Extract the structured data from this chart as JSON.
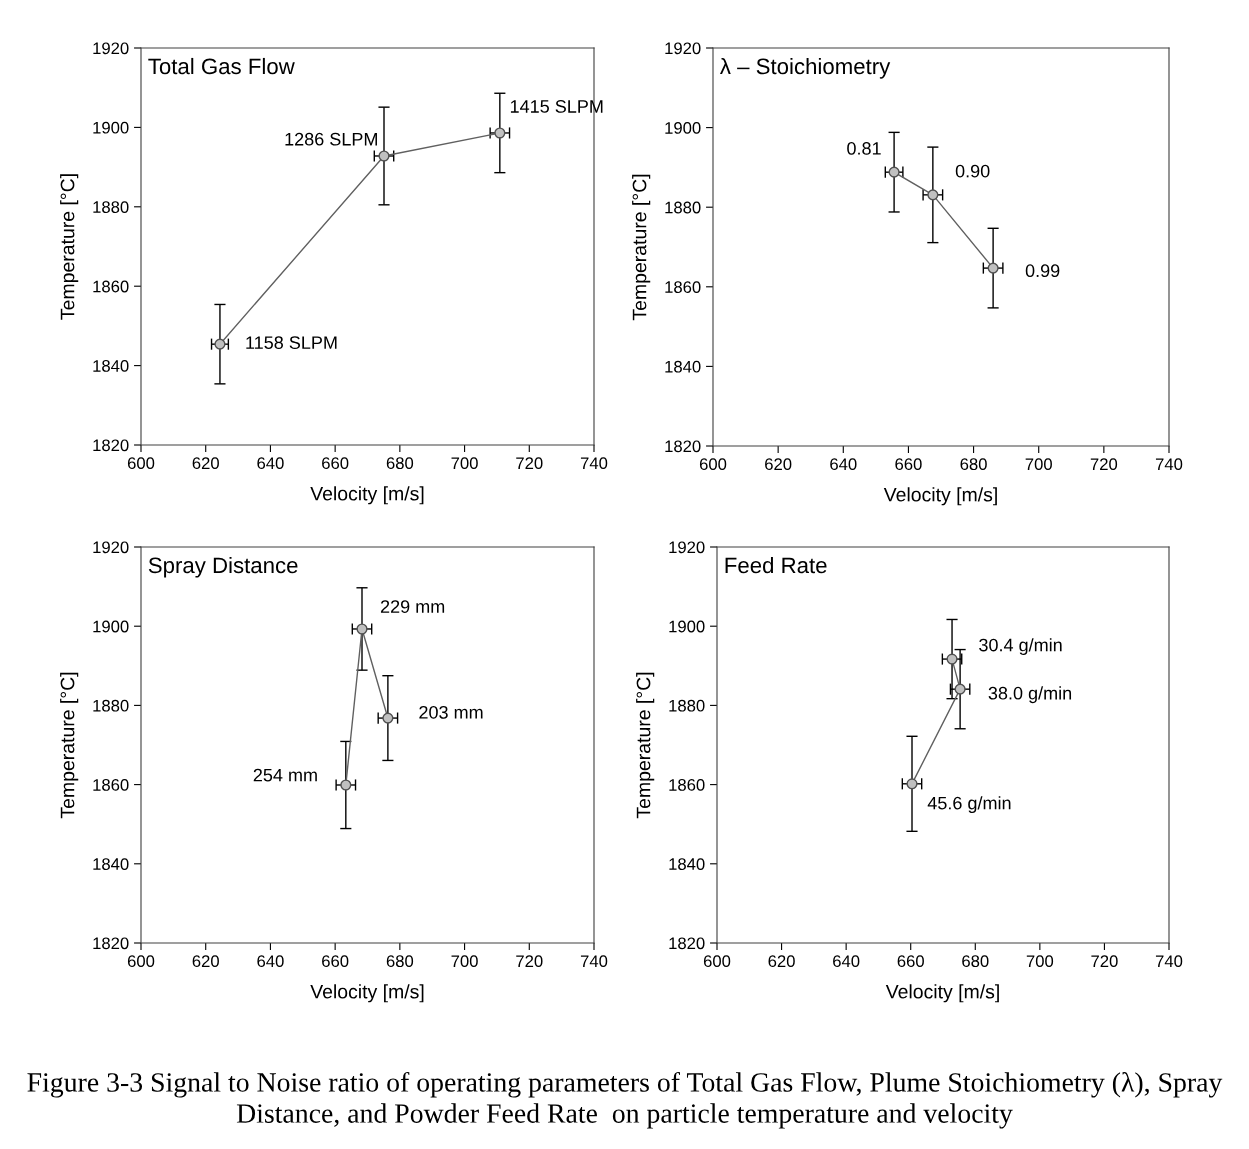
{
  "chart_data": [
    {
      "type": "line",
      "title": "Total Gas Flow",
      "xlabel": "Velocity [m/s]",
      "ylabel": "Temperature [°C]",
      "marker": "circle",
      "line_style": "solid",
      "xlim": [
        600,
        740
      ],
      "ylim": [
        1820,
        1920
      ],
      "xticks": [
        600,
        620,
        640,
        660,
        680,
        700,
        720,
        740
      ],
      "yticks": [
        1820,
        1840,
        1860,
        1880,
        1900,
        1920
      ],
      "series": [
        {
          "color": "#606060",
          "x": [
            624.4,
            675.1,
            710.9
          ],
          "values": [
            1845.4,
            1892.8,
            1898.6
          ],
          "errors": [
            10,
            12.3,
            10
          ],
          "xerrors": [
            2.6,
            3,
            3
          ]
        }
      ],
      "annotations": [
        {
          "text": "1158 SLPM",
          "x": 624.4,
          "y": 1845.4
        },
        {
          "text": "1286 SLPM",
          "x": 675.1,
          "y": 1892.8
        },
        {
          "text": "1415 SLPM",
          "x": 710.9,
          "y": 1898.6
        }
      ]
    },
    {
      "type": "line",
      "title": "λ – Stoichiometry",
      "xlabel": "Velocity [m/s]",
      "ylabel": "Temperature [°C]",
      "marker": "circle",
      "line_style": "solid",
      "xlim": [
        600,
        740
      ],
      "ylim": [
        1820,
        1920
      ],
      "xticks": [
        600,
        620,
        640,
        660,
        680,
        700,
        720,
        740
      ],
      "yticks": [
        1820,
        1840,
        1860,
        1880,
        1900,
        1920
      ],
      "series": [
        {
          "color": "#606060",
          "x": [
            655.6,
            667.5,
            686
          ],
          "values": [
            1888.8,
            1883.1,
            1864.7
          ],
          "errors": [
            10,
            12,
            10
          ],
          "xerrors": [
            2.7,
            3,
            3
          ]
        }
      ],
      "annotations": [
        {
          "text": "0.81",
          "x": 655.6,
          "y": 1888.8
        },
        {
          "text": "0.90",
          "x": 667.5,
          "y": 1883.1
        },
        {
          "text": "0.99",
          "x": 686,
          "y": 1864.7
        }
      ]
    },
    {
      "type": "line",
      "title": "Spray Distance",
      "xlabel": "Velocity [m/s]",
      "ylabel": "Temperature [°C]",
      "marker": "circle",
      "line_style": "solid",
      "xlim": [
        600,
        740
      ],
      "ylim": [
        1820,
        1920
      ],
      "xticks": [
        600,
        620,
        640,
        660,
        680,
        700,
        720,
        740
      ],
      "yticks": [
        1820,
        1840,
        1860,
        1880,
        1900,
        1920
      ],
      "series": [
        {
          "color": "#606060",
          "x": [
            663.3,
            668.3,
            676.3
          ],
          "values": [
            1859.9,
            1899.3,
            1876.8
          ],
          "errors": [
            11,
            10.4,
            10.7
          ],
          "xerrors": [
            3,
            3,
            3
          ]
        }
      ],
      "annotations": [
        {
          "text": "229 mm",
          "x": 668.3,
          "y": 1899.3
        },
        {
          "text": "203 mm",
          "x": 676.3,
          "y": 1876.8
        },
        {
          "text": "254 mm",
          "x": 663.3,
          "y": 1859.9
        }
      ]
    },
    {
      "type": "line",
      "title": "Feed Rate",
      "xlabel": "Velocity [m/s]",
      "ylabel": "Temperature [°C]",
      "marker": "circle",
      "line_style": "solid",
      "xlim": [
        600,
        740
      ],
      "ylim": [
        1820,
        1920
      ],
      "xticks": [
        600,
        620,
        640,
        660,
        680,
        700,
        720,
        740
      ],
      "yticks": [
        1820,
        1840,
        1860,
        1880,
        1900,
        1920
      ],
      "series": [
        {
          "color": "#606060",
          "x": [
            672.8,
            675.3,
            660.4
          ],
          "values": [
            1891.7,
            1884.1,
            1860.2
          ],
          "errors": [
            10,
            10,
            12
          ],
          "xerrors": [
            3,
            3,
            3
          ]
        }
      ],
      "annotations": [
        {
          "text": "30.4 g/min",
          "x": 672.8,
          "y": 1891.7
        },
        {
          "text": "38.0 g/min",
          "x": 675.3,
          "y": 1884.1
        },
        {
          "text": "45.6 g/min",
          "x": 660.4,
          "y": 1860.2
        },
        "Figure 3-3 Signal to Noise ratio of operating parameters of Total Gas Flow, Plume Stoichiometry (λ), Spray Distance, and Powder Feed Rate  on particle temperature and velocity"
      ]
    }
  ]
}
